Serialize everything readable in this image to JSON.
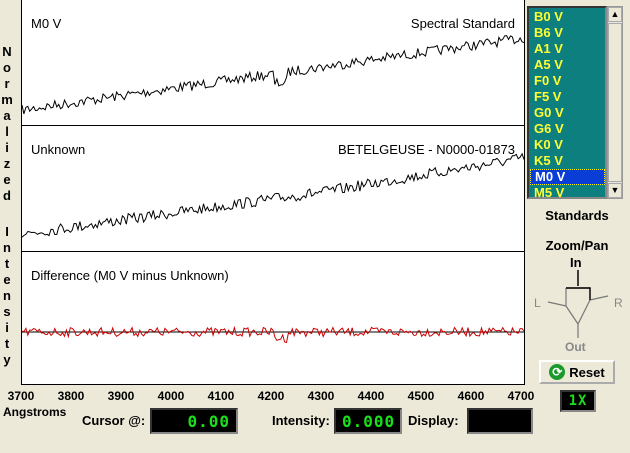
{
  "y_axis_label": "Normalized Intensity",
  "y_axis_letters": [
    "N",
    "o",
    "r",
    "m",
    "a",
    "l",
    "i",
    "z",
    "e",
    "d",
    "I",
    "n",
    "t",
    "e",
    "n",
    "s",
    "i",
    "t",
    "y"
  ],
  "panels": [
    {
      "title": "M0 V",
      "right_label": "Spectral Standard",
      "trace_color": "#000000"
    },
    {
      "title": "Unknown",
      "right_label": "BETELGEUSE - N0000-01873",
      "trace_color": "#000000"
    },
    {
      "title": "Difference (M0 V minus Unknown)",
      "right_label": "",
      "trace_color": "#cc0000"
    }
  ],
  "x_axis": {
    "ticks": [
      "3700",
      "3800",
      "3900",
      "4000",
      "4100",
      "4200",
      "4300",
      "4400",
      "4500",
      "4600",
      "4700"
    ],
    "unit_label": "Angstroms",
    "range": [
      3700,
      4700
    ]
  },
  "readouts": {
    "cursor_label": "Cursor @:",
    "cursor_value": "0.00",
    "intensity_label": "Intensity:",
    "intensity_value": "0.000",
    "display_label": "Display:",
    "display_value": ""
  },
  "standards": {
    "items": [
      "B0 V",
      "B6 V",
      "A1 V",
      "A5 V",
      "F0 V",
      "F5 V",
      "G0 V",
      "G6 V",
      "K0 V",
      "K5 V",
      "M0 V",
      "M5 V"
    ],
    "selected": "M0 V",
    "caption": "Standards"
  },
  "zoom_pan": {
    "caption": "Zoom/Pan",
    "in": "In",
    "out": "Out",
    "left": "L",
    "right": "R"
  },
  "reset_label": "Reset",
  "zoom_level": "1X",
  "colors": {
    "list_bg": "#0e7f7f",
    "list_text": "#ffff33",
    "selected_bg": "#0a3cd6",
    "lcd_text": "#19e019",
    "difference": "#cc0000"
  }
}
